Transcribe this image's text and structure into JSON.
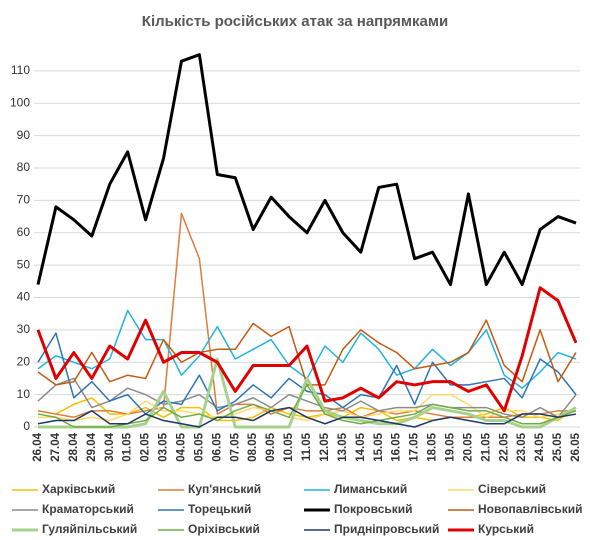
{
  "chart_data": {
    "type": "line",
    "title": "Кількість російських атак за напрямками",
    "categories": [
      "26.04",
      "27.04",
      "28.04",
      "29.04",
      "30.04",
      "01.05",
      "02.05",
      "03.05",
      "04.05",
      "05.05",
      "06.05",
      "07.05",
      "08.05",
      "09.05",
      "10.05",
      "11.05",
      "12.05",
      "13.05",
      "14.05",
      "15.05",
      "16.05",
      "17.05",
      "18.05",
      "19.05",
      "20.05",
      "21.05",
      "22.05",
      "23.05",
      "24.05",
      "25.05",
      "26.05"
    ],
    "ylim": [
      0,
      118
    ],
    "yticks": [
      0,
      10,
      20,
      30,
      40,
      50,
      60,
      70,
      80,
      90,
      100,
      110
    ],
    "grid": true,
    "series": [
      {
        "name": "Харківський",
        "color": "#f2c200",
        "line_width": 1.5,
        "values": [
          5,
          4,
          7,
          9,
          4,
          4,
          6,
          3,
          6,
          6,
          2,
          2,
          3,
          6,
          4,
          3,
          4,
          3,
          6,
          5,
          2,
          3,
          2,
          3,
          3,
          4,
          6,
          3,
          3,
          2,
          6
        ]
      },
      {
        "name": "Куп'янський",
        "color": "#e07b39",
        "line_width": 1.5,
        "values": [
          5,
          4,
          3,
          5,
          5,
          4,
          5,
          6,
          66,
          52,
          4,
          7,
          7,
          4,
          6,
          5,
          5,
          6,
          3,
          5,
          4,
          5,
          4,
          3,
          3,
          3,
          3,
          4,
          4,
          5,
          5
        ]
      },
      {
        "name": "Лиманський",
        "color": "#1fb5e0",
        "line_width": 1.5,
        "values": [
          18,
          22,
          20,
          18,
          21,
          36,
          27,
          27,
          16,
          22,
          31,
          21,
          24,
          27,
          19,
          15,
          25,
          20,
          29,
          24,
          16,
          18,
          24,
          19,
          23,
          30,
          16,
          12,
          17,
          23,
          21
        ]
      },
      {
        "name": "Сіверський",
        "color": "#ffd966",
        "line_width": 1.5,
        "values": [
          3,
          3,
          2,
          3,
          2,
          4,
          8,
          5,
          5,
          4,
          3,
          4,
          6,
          5,
          3,
          2,
          4,
          5,
          3,
          4,
          5,
          5,
          10,
          10,
          7,
          3,
          5,
          5,
          3,
          4,
          5
        ]
      },
      {
        "name": "Краматорський",
        "color": "#8c8c8c",
        "line_width": 1.5,
        "values": [
          8,
          13,
          15,
          6,
          8,
          12,
          10,
          7,
          8,
          10,
          6,
          7,
          9,
          6,
          10,
          8,
          6,
          5,
          8,
          5,
          6,
          6,
          7,
          6,
          6,
          6,
          4,
          3,
          6,
          3,
          10
        ]
      },
      {
        "name": "Торецький",
        "color": "#2e75b6",
        "line_width": 1.5,
        "values": [
          20,
          29,
          9,
          14,
          8,
          10,
          4,
          8,
          7,
          16,
          5,
          8,
          13,
          9,
          15,
          11,
          10,
          6,
          10,
          9,
          19,
          7,
          20,
          13,
          13,
          14,
          15,
          9,
          21,
          17,
          10
        ]
      },
      {
        "name": "Покровський",
        "color": "#000000",
        "line_width": 3,
        "values": [
          44,
          68,
          64,
          59,
          75,
          85,
          64,
          83,
          113,
          115,
          78,
          77,
          61,
          71,
          65,
          60,
          70,
          60,
          54,
          74,
          75,
          52,
          54,
          44,
          72,
          44,
          54,
          44,
          61,
          65,
          63
        ]
      },
      {
        "name": "Новопавлівський",
        "color": "#c55a11",
        "line_width": 1.5,
        "values": [
          17,
          13,
          14,
          23,
          14,
          16,
          15,
          27,
          20,
          23,
          24,
          24,
          32,
          28,
          31,
          13,
          13,
          24,
          30,
          26,
          23,
          18,
          19,
          20,
          23,
          33,
          19,
          14,
          30,
          14,
          23
        ]
      },
      {
        "name": "Гуляйпільський",
        "color": "#a9d18e",
        "line_width": 3,
        "values": [
          0,
          0,
          0,
          0,
          0,
          0,
          1,
          11,
          0,
          0,
          21,
          0,
          0,
          0,
          0,
          15,
          5,
          3,
          2,
          1,
          1,
          3,
          6,
          5,
          4,
          2,
          2,
          0,
          0,
          3,
          6
        ]
      },
      {
        "name": "Оріхівський",
        "color": "#70ad47",
        "line_width": 1.5,
        "values": [
          4,
          3,
          0,
          0,
          0,
          1,
          2,
          6,
          3,
          4,
          2,
          5,
          7,
          5,
          3,
          13,
          4,
          2,
          1,
          2,
          3,
          4,
          7,
          6,
          5,
          5,
          3,
          1,
          1,
          3,
          5
        ]
      },
      {
        "name": "Придніпровський",
        "color": "#1f3864",
        "line_width": 1.5,
        "values": [
          1,
          2,
          2,
          5,
          1,
          1,
          4,
          2,
          1,
          0,
          3,
          3,
          2,
          5,
          6,
          3,
          1,
          3,
          3,
          2,
          1,
          0,
          2,
          3,
          2,
          1,
          1,
          4,
          4,
          3,
          4
        ]
      },
      {
        "name": "Курський",
        "color": "#e00000",
        "line_width": 3,
        "values": [
          30,
          15,
          23,
          15,
          25,
          21,
          33,
          20,
          23,
          23,
          20,
          11,
          19,
          19,
          19,
          25,
          8,
          9,
          12,
          9,
          14,
          13,
          14,
          14,
          11,
          13,
          5,
          22,
          43,
          39,
          26
        ]
      }
    ]
  }
}
